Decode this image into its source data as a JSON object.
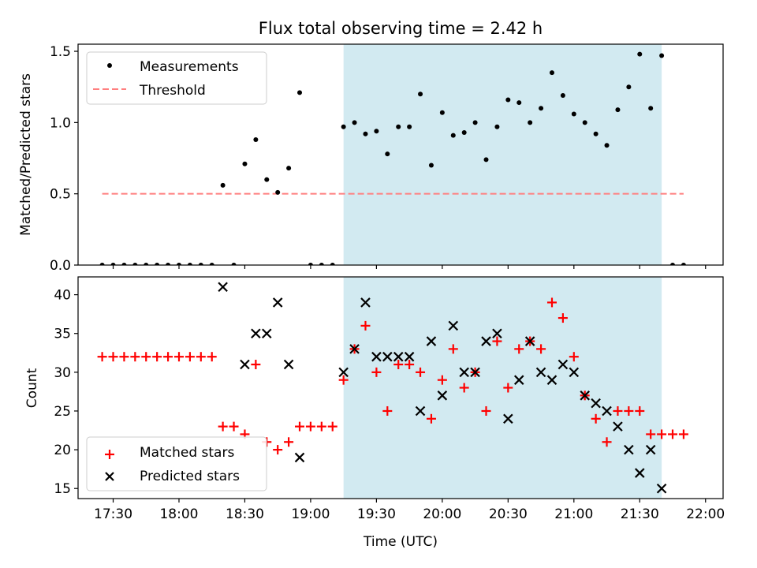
{
  "title": "Flux total observing time = 2.42 h",
  "chart_data": [
    {
      "type": "scatter",
      "panel": "top",
      "ylabel": "Matched/Predicted stars",
      "xlim": [
        "17:14",
        "22:08"
      ],
      "ylim": [
        0,
        1.55
      ],
      "yticks": [
        {
          "v": 0.0,
          "label": "0.0"
        },
        {
          "v": 0.5,
          "label": "0.5"
        },
        {
          "v": 1.0,
          "label": "1.0"
        },
        {
          "v": 1.5,
          "label": "1.5"
        }
      ],
      "legend": {
        "placement": "top-left",
        "entries": [
          {
            "label": "Measurements",
            "marker": "dot",
            "color": "#000000"
          },
          {
            "label": "Threshold",
            "marker": "dashed-line",
            "color": "#ff7f7f"
          }
        ]
      },
      "highlight": {
        "x_start": "19:15",
        "x_end": "21:40",
        "color": "#add8e6"
      },
      "threshold": {
        "y": 0.5,
        "x_start": "17:25",
        "x_end": "21:50",
        "color": "#ff7f7f"
      },
      "series": [
        {
          "name": "Measurements",
          "color": "#000000",
          "x": [
            "17:25",
            "17:30",
            "17:35",
            "17:40",
            "17:45",
            "17:50",
            "17:55",
            "18:00",
            "18:05",
            "18:10",
            "18:15",
            "18:20",
            "18:25",
            "18:30",
            "18:35",
            "18:40",
            "18:45",
            "18:50",
            "18:55",
            "19:00",
            "19:05",
            "19:10",
            "19:15",
            "19:20",
            "19:25",
            "19:30",
            "19:35",
            "19:40",
            "19:45",
            "19:50",
            "19:55",
            "20:00",
            "20:05",
            "20:10",
            "20:15",
            "20:20",
            "20:25",
            "20:30",
            "20:35",
            "20:40",
            "20:45",
            "20:50",
            "20:55",
            "21:00",
            "21:05",
            "21:10",
            "21:15",
            "21:20",
            "21:25",
            "21:30",
            "21:35",
            "21:40",
            "21:45",
            "21:50"
          ],
          "y": [
            0,
            0,
            0,
            0,
            0,
            0,
            0,
            0,
            0,
            0,
            0,
            0.56,
            0,
            0.71,
            0.88,
            0.6,
            0.51,
            0.68,
            1.21,
            0,
            0,
            0,
            0.97,
            1.0,
            0.92,
            0.94,
            0.78,
            0.97,
            0.97,
            1.2,
            0.7,
            1.07,
            0.91,
            0.93,
            1.0,
            0.74,
            0.97,
            1.16,
            1.14,
            1.0,
            1.1,
            1.35,
            1.19,
            1.06,
            1.0,
            0.92,
            0.84,
            1.09,
            1.25,
            1.48,
            1.1,
            1.47,
            0,
            0
          ]
        }
      ]
    },
    {
      "type": "scatter",
      "panel": "bottom",
      "xlabel": "Time (UTC)",
      "ylabel": "Count",
      "xlim": [
        "17:14",
        "22:08"
      ],
      "ylim": [
        13.7,
        42.3
      ],
      "xticks": [
        "17:30",
        "18:00",
        "18:30",
        "19:00",
        "19:30",
        "20:00",
        "20:30",
        "21:00",
        "21:30",
        "22:00"
      ],
      "yticks": [
        {
          "v": 15,
          "label": "15"
        },
        {
          "v": 20,
          "label": "20"
        },
        {
          "v": 25,
          "label": "25"
        },
        {
          "v": 30,
          "label": "30"
        },
        {
          "v": 35,
          "label": "35"
        },
        {
          "v": 40,
          "label": "40"
        }
      ],
      "legend": {
        "placement": "bottom-left",
        "entries": [
          {
            "label": "Matched stars",
            "marker": "plus",
            "color": "#ff0000"
          },
          {
            "label": "Predicted stars",
            "marker": "x",
            "color": "#000000"
          }
        ]
      },
      "highlight": {
        "x_start": "19:15",
        "x_end": "21:40",
        "color": "#add8e6"
      },
      "series": [
        {
          "name": "Matched stars",
          "marker": "plus",
          "color": "#ff0000",
          "x": [
            "17:25",
            "17:30",
            "17:35",
            "17:40",
            "17:45",
            "17:50",
            "17:55",
            "18:00",
            "18:05",
            "18:10",
            "18:15",
            "18:20",
            "18:25",
            "18:30",
            "18:35",
            "18:40",
            "18:45",
            "18:50",
            "18:55",
            "19:00",
            "19:05",
            "19:10",
            "19:15",
            "19:20",
            "19:25",
            "19:30",
            "19:35",
            "19:40",
            "19:45",
            "19:50",
            "19:55",
            "20:00",
            "20:05",
            "20:10",
            "20:15",
            "20:20",
            "20:25",
            "20:30",
            "20:35",
            "20:40",
            "20:45",
            "20:50",
            "20:55",
            "21:00",
            "21:05",
            "21:10",
            "21:15",
            "21:20",
            "21:25",
            "21:30",
            "21:35",
            "21:40",
            "21:45",
            "21:50"
          ],
          "y": [
            32,
            32,
            32,
            32,
            32,
            32,
            32,
            32,
            32,
            32,
            32,
            23,
            23,
            22,
            31,
            21,
            20,
            21,
            23,
            23,
            23,
            23,
            29,
            33,
            36,
            30,
            25,
            31,
            31,
            30,
            24,
            29,
            33,
            28,
            30,
            25,
            34,
            28,
            33,
            34,
            33,
            39,
            37,
            32,
            27,
            24,
            21,
            25,
            25,
            25,
            22,
            22,
            22,
            22
          ]
        },
        {
          "name": "Predicted stars",
          "marker": "x",
          "color": "#000000",
          "x": [
            "18:20",
            "18:30",
            "18:35",
            "18:40",
            "18:45",
            "18:50",
            "18:55",
            "19:15",
            "19:20",
            "19:25",
            "19:30",
            "19:35",
            "19:40",
            "19:45",
            "19:50",
            "19:55",
            "20:00",
            "20:05",
            "20:10",
            "20:15",
            "20:20",
            "20:25",
            "20:30",
            "20:35",
            "20:40",
            "20:45",
            "20:50",
            "20:55",
            "21:00",
            "21:05",
            "21:10",
            "21:15",
            "21:20",
            "21:25",
            "21:30",
            "21:35",
            "21:40"
          ],
          "y": [
            41,
            31,
            35,
            35,
            39,
            31,
            19,
            30,
            33,
            39,
            32,
            32,
            32,
            32,
            25,
            34,
            27,
            36,
            30,
            30,
            34,
            35,
            24,
            29,
            34,
            30,
            29,
            31,
            30,
            27,
            26,
            25,
            23,
            20,
            17,
            20,
            15
          ]
        }
      ]
    }
  ]
}
